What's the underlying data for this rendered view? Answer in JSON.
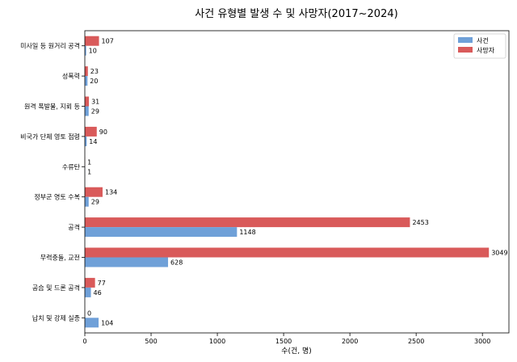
{
  "chart_data": {
    "type": "bar",
    "orientation": "horizontal",
    "title": "사건 유형별 발생 수 및 사망자(2017~2024)",
    "xlabel": "수(건, 명)",
    "ylabel": "",
    "xlim": [
      0,
      3200
    ],
    "xticks": [
      0,
      500,
      1000,
      1500,
      2000,
      2500,
      3000
    ],
    "grid": false,
    "legend_position": "top-right",
    "categories": [
      "미사일 등 원거리 공격",
      "성폭력",
      "원격 폭발물, 지뢰 등",
      "비국가 단체 영토 점령",
      "수류탄",
      "정부군 영토 수복",
      "공격",
      "무력충돌, 교전",
      "공습 및 드론 공격",
      "납치 및 강제 실종"
    ],
    "series": [
      {
        "name": "사건",
        "color": "#6fa0d8",
        "values": [
          10,
          20,
          29,
          14,
          1,
          29,
          1148,
          628,
          46,
          104
        ]
      },
      {
        "name": "사망자",
        "color": "#d95a5a",
        "values": [
          107,
          23,
          31,
          90,
          1,
          134,
          2453,
          3049,
          77,
          0
        ]
      }
    ]
  }
}
